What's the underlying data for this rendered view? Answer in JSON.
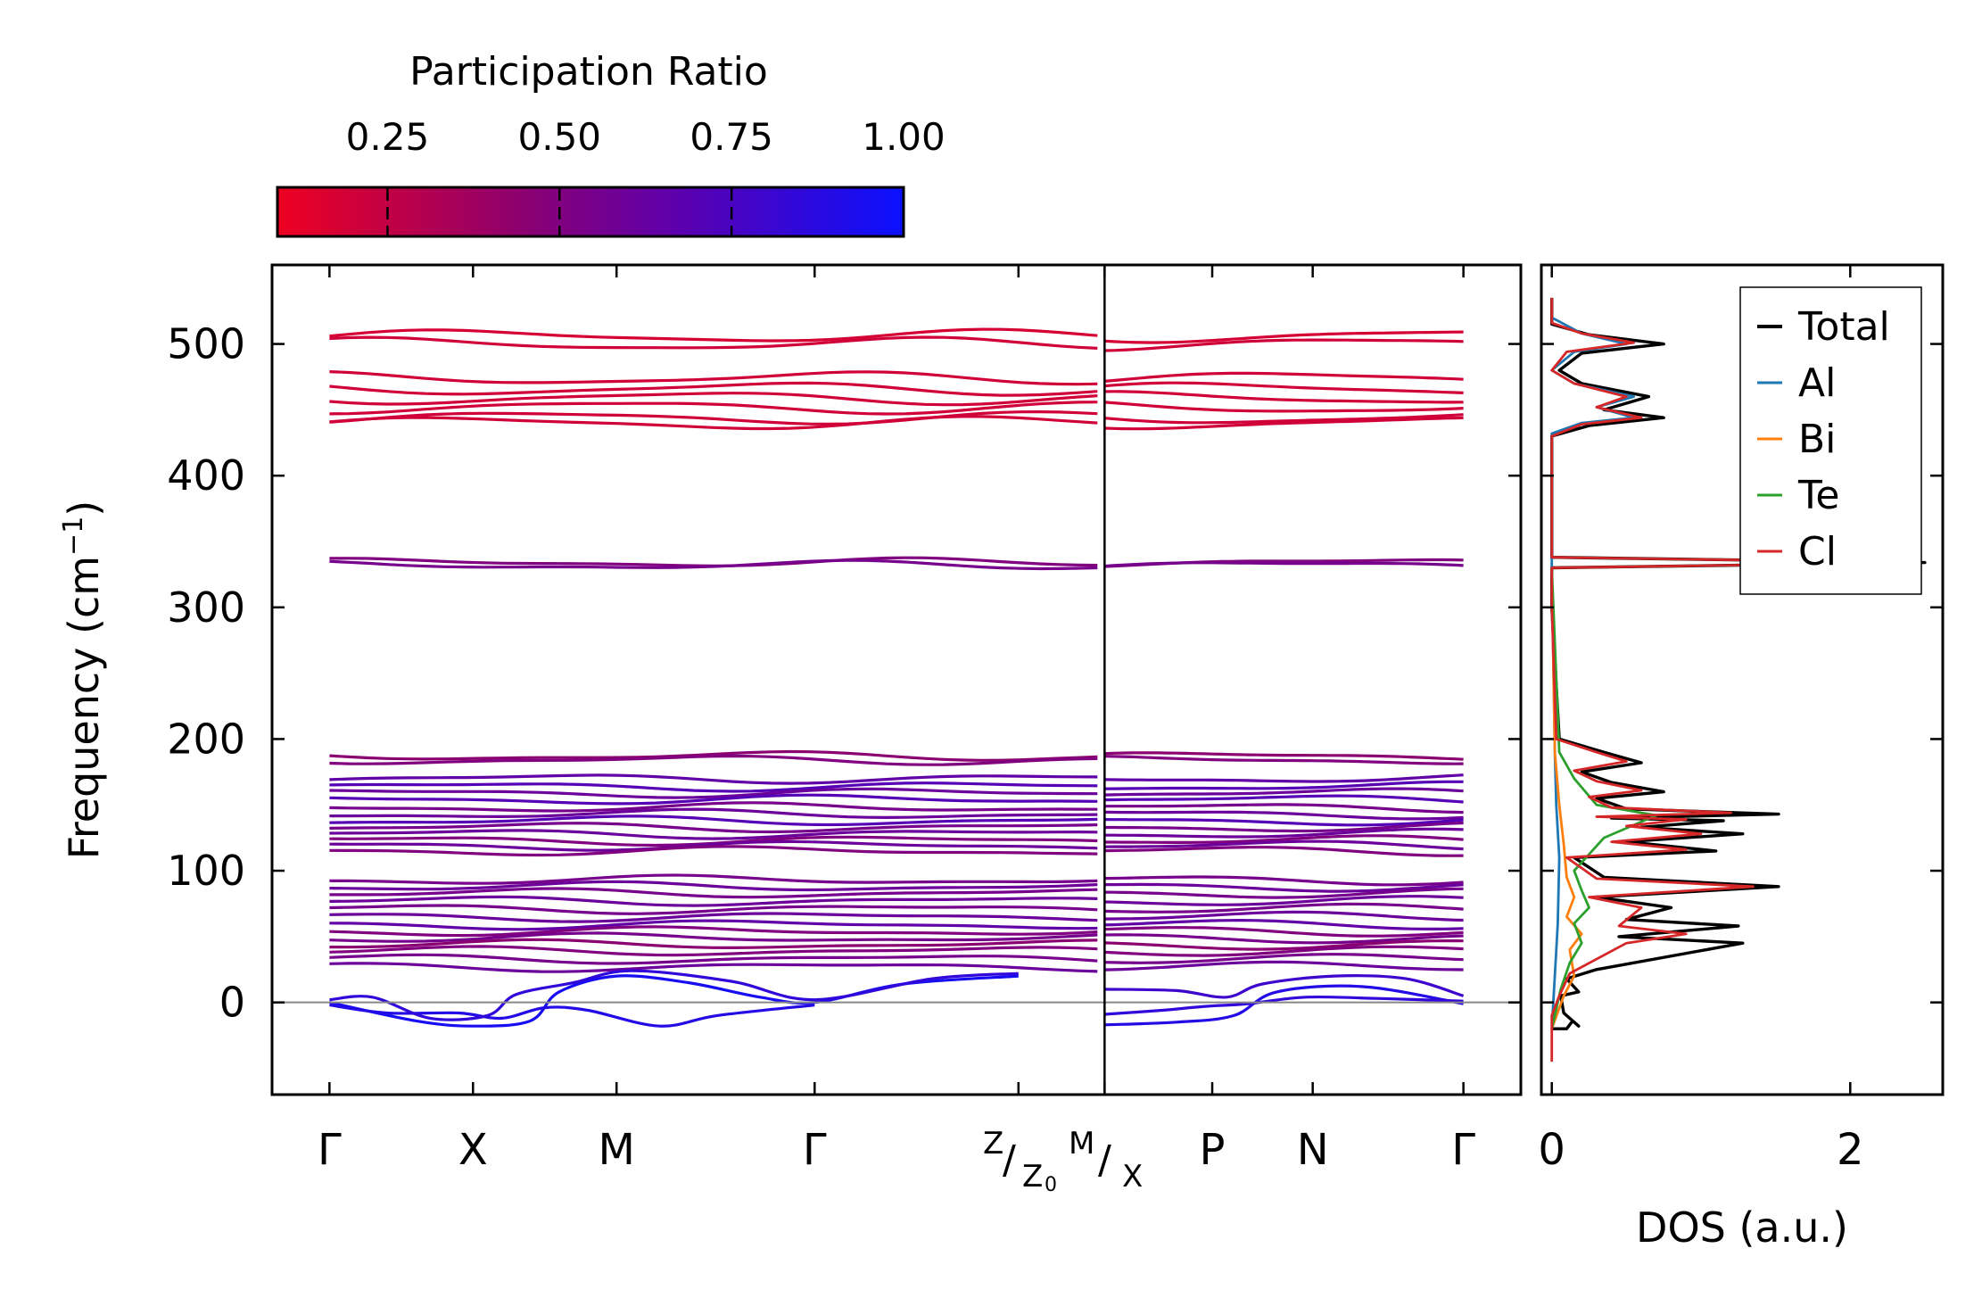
{
  "chart_data": [
    {
      "type": "line",
      "title": "",
      "xlabel": "",
      "ylabel": "Frequency (cm⁻¹)",
      "ylabel_parts": {
        "main": "Frequency (cm",
        "sup": "−1",
        "close": ")"
      },
      "ylim": [
        -70,
        560
      ],
      "yticks": [
        0,
        100,
        200,
        300,
        400,
        500
      ],
      "ytick_labels": [
        "0",
        "100",
        "200",
        "300",
        "400",
        "500"
      ],
      "high_symmetry_points": [
        {
          "label": "Γ",
          "x": 0.0
        },
        {
          "label": "X",
          "x": 1.0
        },
        {
          "label": "M",
          "x": 2.0
        },
        {
          "label": "Γ",
          "x": 3.38
        },
        {
          "label": "",
          "x": 4.8
        },
        {
          "label": "P",
          "x": 6.15
        },
        {
          "label": "N",
          "x": 6.85
        },
        {
          "label": "Γ",
          "x": 7.9
        }
      ],
      "path_break": {
        "x": 5.4,
        "label_parts": [
          "Z",
          "/",
          "Z",
          "0",
          "M",
          "/",
          "X"
        ]
      },
      "xlim": [
        -0.4,
        8.3
      ],
      "colorbar": {
        "label": "Participation Ratio",
        "ticks": [
          0.25,
          0.5,
          0.75,
          1.0
        ],
        "tick_labels": [
          "0.25",
          "0.50",
          "0.75",
          "1.00"
        ],
        "range": [
          0.09,
          1.0
        ],
        "colors": [
          "#ee0020",
          "#8a0072",
          "#5a00b0",
          "#0a10ff"
        ]
      },
      "zero_line": 0,
      "bands": {
        "high_frequency": [
          {
            "freq": 506,
            "pr": 0.18
          },
          {
            "freq": 500,
            "pr": 0.2
          },
          {
            "freq": 474,
            "pr": 0.2
          },
          {
            "freq": 466,
            "pr": 0.2
          },
          {
            "freq": 459,
            "pr": 0.2
          },
          {
            "freq": 452,
            "pr": 0.2
          },
          {
            "freq": 444,
            "pr": 0.2
          },
          {
            "freq": 440,
            "pr": 0.2
          },
          {
            "freq": 334,
            "pr": 0.5
          },
          {
            "freq": 332,
            "pr": 0.55
          },
          {
            "freq": 187,
            "pr": 0.45
          },
          {
            "freq": 184,
            "pr": 0.5
          }
        ],
        "mid_frequency": [
          {
            "freq": 170,
            "pr": 0.65
          },
          {
            "freq": 164,
            "pr": 0.7
          },
          {
            "freq": 159,
            "pr": 0.6
          },
          {
            "freq": 154,
            "pr": 0.7
          },
          {
            "freq": 148,
            "pr": 0.55
          },
          {
            "freq": 143,
            "pr": 0.6
          },
          {
            "freq": 138,
            "pr": 0.7
          },
          {
            "freq": 133,
            "pr": 0.55
          },
          {
            "freq": 128,
            "pr": 0.6
          },
          {
            "freq": 123,
            "pr": 0.5
          },
          {
            "freq": 119,
            "pr": 0.6
          },
          {
            "freq": 115,
            "pr": 0.5
          },
          {
            "freq": 93,
            "pr": 0.55
          },
          {
            "freq": 88,
            "pr": 0.6
          },
          {
            "freq": 83,
            "pr": 0.55
          },
          {
            "freq": 77,
            "pr": 0.6
          },
          {
            "freq": 71,
            "pr": 0.55
          },
          {
            "freq": 65,
            "pr": 0.6
          },
          {
            "freq": 59,
            "pr": 0.65
          },
          {
            "freq": 54,
            "pr": 0.5
          },
          {
            "freq": 49,
            "pr": 0.55
          },
          {
            "freq": 44,
            "pr": 0.45
          },
          {
            "freq": 39,
            "pr": 0.5
          },
          {
            "freq": 33,
            "pr": 0.55
          },
          {
            "freq": 27,
            "pr": 0.6
          }
        ],
        "acoustic": [
          {
            "pr": 0.95,
            "points": [
              [
                0,
                0
              ],
              [
                0.6,
                -14
              ],
              [
                1.0,
                -18
              ],
              [
                1.4,
                -14
              ],
              [
                1.6,
                8
              ],
              [
                2.0,
                20
              ],
              [
                2.5,
                15
              ],
              [
                3.0,
                4
              ],
              [
                3.38,
                0
              ],
              [
                4.0,
                14
              ],
              [
                4.8,
                20
              ]
            ]
          },
          {
            "pr": 0.9,
            "points": [
              [
                0,
                -2
              ],
              [
                0.4,
                -8
              ],
              [
                0.9,
                -8
              ],
              [
                1.2,
                -12
              ],
              [
                1.5,
                -4
              ],
              [
                1.8,
                -6
              ],
              [
                2.3,
                -18
              ],
              [
                2.7,
                -10
              ],
              [
                3.38,
                -2
              ]
            ]
          },
          {
            "pr": 0.85,
            "points": [
              [
                0,
                2
              ],
              [
                0.3,
                4
              ],
              [
                0.7,
                -12
              ],
              [
                1.1,
                -10
              ],
              [
                1.3,
                6
              ],
              [
                1.7,
                15
              ],
              [
                2.1,
                24
              ],
              [
                2.8,
                16
              ],
              [
                3.38,
                2
              ],
              [
                4.2,
                18
              ],
              [
                4.8,
                22
              ]
            ]
          },
          {
            "pr": 0.9,
            "points": [
              [
                5.4,
                -17
              ],
              [
                5.9,
                -15
              ],
              [
                6.3,
                -10
              ],
              [
                6.6,
                8
              ],
              [
                7.2,
                12
              ],
              [
                7.9,
                -1
              ]
            ]
          },
          {
            "pr": 0.85,
            "points": [
              [
                5.4,
                -9
              ],
              [
                5.8,
                -6
              ],
              [
                6.1,
                -3
              ],
              [
                6.4,
                -1
              ],
              [
                6.8,
                4
              ],
              [
                7.3,
                3
              ],
              [
                7.9,
                1
              ]
            ]
          },
          {
            "pr": 0.8,
            "points": [
              [
                5.4,
                10
              ],
              [
                5.9,
                9
              ],
              [
                6.25,
                4
              ],
              [
                6.5,
                14
              ],
              [
                7.0,
                20
              ],
              [
                7.5,
                18
              ],
              [
                7.9,
                5
              ]
            ]
          }
        ]
      }
    },
    {
      "type": "line",
      "title": "",
      "xlabel": "DOS (a.u.)",
      "ylabel": "",
      "xlim": [
        -0.07,
        2.62
      ],
      "xticks": [
        0,
        2
      ],
      "xtick_labels": [
        "0",
        "2"
      ],
      "ylim": [
        -70,
        560
      ],
      "legend": {
        "placement": "top-right",
        "entries": [
          {
            "name": "Total",
            "color": "#000000"
          },
          {
            "name": "Al",
            "color": "#1f77b4"
          },
          {
            "name": "Bi",
            "color": "#ff7f0e"
          },
          {
            "name": "Te",
            "color": "#2ca02c"
          },
          {
            "name": "Cl",
            "color": "#d62728"
          }
        ]
      },
      "series": [
        {
          "name": "Total",
          "color": "#000000",
          "points": [
            [
              0,
              -20
            ],
            [
              0.1,
              -20
            ],
            [
              0.14,
              -14
            ],
            [
              0.18,
              -18
            ],
            [
              0.08,
              -8
            ],
            [
              0.06,
              5
            ],
            [
              0.18,
              8
            ],
            [
              0.1,
              18
            ],
            [
              0.3,
              25
            ],
            [
              1.28,
              45
            ],
            [
              0.45,
              50
            ],
            [
              1.25,
              58
            ],
            [
              0.5,
              63
            ],
            [
              0.8,
              72
            ],
            [
              0.3,
              80
            ],
            [
              1.52,
              88
            ],
            [
              0.35,
              95
            ],
            [
              0.15,
              110
            ],
            [
              1.1,
              115
            ],
            [
              0.5,
              122
            ],
            [
              1.28,
              128
            ],
            [
              0.6,
              133
            ],
            [
              1.15,
              138
            ],
            [
              0.4,
              140
            ],
            [
              1.52,
              143
            ],
            [
              0.5,
              147
            ],
            [
              0.3,
              155
            ],
            [
              0.75,
              160
            ],
            [
              0.4,
              167
            ],
            [
              0.2,
              175
            ],
            [
              0.6,
              182
            ],
            [
              0.35,
              190
            ],
            [
              0.05,
              200
            ],
            [
              0,
              300
            ],
            [
              0,
              330
            ],
            [
              2.5,
              334
            ],
            [
              0,
              338
            ],
            [
              0,
              430
            ],
            [
              0.25,
              438
            ],
            [
              0.75,
              444
            ],
            [
              0.35,
              450
            ],
            [
              0.65,
              460
            ],
            [
              0.2,
              470
            ],
            [
              0.05,
              480
            ],
            [
              0.2,
              493
            ],
            [
              0.75,
              500
            ],
            [
              0.25,
              507
            ],
            [
              0,
              515
            ],
            [
              0,
              535
            ]
          ]
        },
        {
          "name": "Al",
          "color": "#1f77b4",
          "points": [
            [
              0,
              -20
            ],
            [
              0.02,
              20
            ],
            [
              0.04,
              60
            ],
            [
              0.05,
              110
            ],
            [
              0.03,
              150
            ],
            [
              0.02,
              190
            ],
            [
              0,
              330
            ],
            [
              0,
              432
            ],
            [
              0.2,
              440
            ],
            [
              0.55,
              444
            ],
            [
              0.3,
              452
            ],
            [
              0.55,
              460
            ],
            [
              0.15,
              470
            ],
            [
              0,
              480
            ],
            [
              0.15,
              494
            ],
            [
              0.5,
              500
            ],
            [
              0.2,
              508
            ],
            [
              0,
              520
            ]
          ]
        },
        {
          "name": "Bi",
          "color": "#ff7f0e",
          "points": [
            [
              0,
              -20
            ],
            [
              0.08,
              5
            ],
            [
              0.15,
              20
            ],
            [
              0.12,
              40
            ],
            [
              0.2,
              52
            ],
            [
              0.1,
              65
            ],
            [
              0.15,
              80
            ],
            [
              0.1,
              95
            ],
            [
              0.08,
              120
            ],
            [
              0.05,
              150
            ],
            [
              0.02,
              190
            ],
            [
              0,
              330
            ]
          ]
        },
        {
          "name": "Te",
          "color": "#2ca02c",
          "points": [
            [
              0,
              -20
            ],
            [
              0.06,
              10
            ],
            [
              0.12,
              30
            ],
            [
              0.2,
              45
            ],
            [
              0.15,
              60
            ],
            [
              0.25,
              72
            ],
            [
              0.2,
              85
            ],
            [
              0.15,
              100
            ],
            [
              0.35,
              125
            ],
            [
              0.7,
              142
            ],
            [
              0.3,
              150
            ],
            [
              0.15,
              170
            ],
            [
              0.05,
              190
            ],
            [
              0,
              330
            ]
          ]
        },
        {
          "name": "Cl",
          "color": "#d62728",
          "points": [
            [
              0,
              -45
            ],
            [
              0,
              -10
            ],
            [
              0.05,
              5
            ],
            [
              0.12,
              22
            ],
            [
              0.5,
              45
            ],
            [
              0.9,
              52
            ],
            [
              0.45,
              58
            ],
            [
              0.6,
              72
            ],
            [
              0.25,
              80
            ],
            [
              1.35,
              88
            ],
            [
              0.3,
              94
            ],
            [
              0.1,
              110
            ],
            [
              0.9,
              116
            ],
            [
              0.4,
              122
            ],
            [
              1.0,
              128
            ],
            [
              0.5,
              134
            ],
            [
              0.9,
              139
            ],
            [
              0.3,
              141
            ],
            [
              1.2,
              144
            ],
            [
              0.4,
              148
            ],
            [
              0.25,
              156
            ],
            [
              0.6,
              161
            ],
            [
              0.3,
              168
            ],
            [
              0.15,
              176
            ],
            [
              0.5,
              183
            ],
            [
              0.3,
              190
            ],
            [
              0.03,
              200
            ],
            [
              0,
              300
            ],
            [
              0,
              330
            ],
            [
              2.45,
              334
            ],
            [
              0,
              338
            ],
            [
              0,
              430
            ],
            [
              0.2,
              439
            ],
            [
              0.6,
              444
            ],
            [
              0.3,
              452
            ],
            [
              0.5,
              460
            ],
            [
              0.15,
              470
            ],
            [
              0,
              480
            ],
            [
              0.1,
              494
            ],
            [
              0.55,
              501
            ],
            [
              0.2,
              508
            ],
            [
              0,
              516
            ],
            [
              0,
              535
            ]
          ]
        }
      ]
    }
  ]
}
